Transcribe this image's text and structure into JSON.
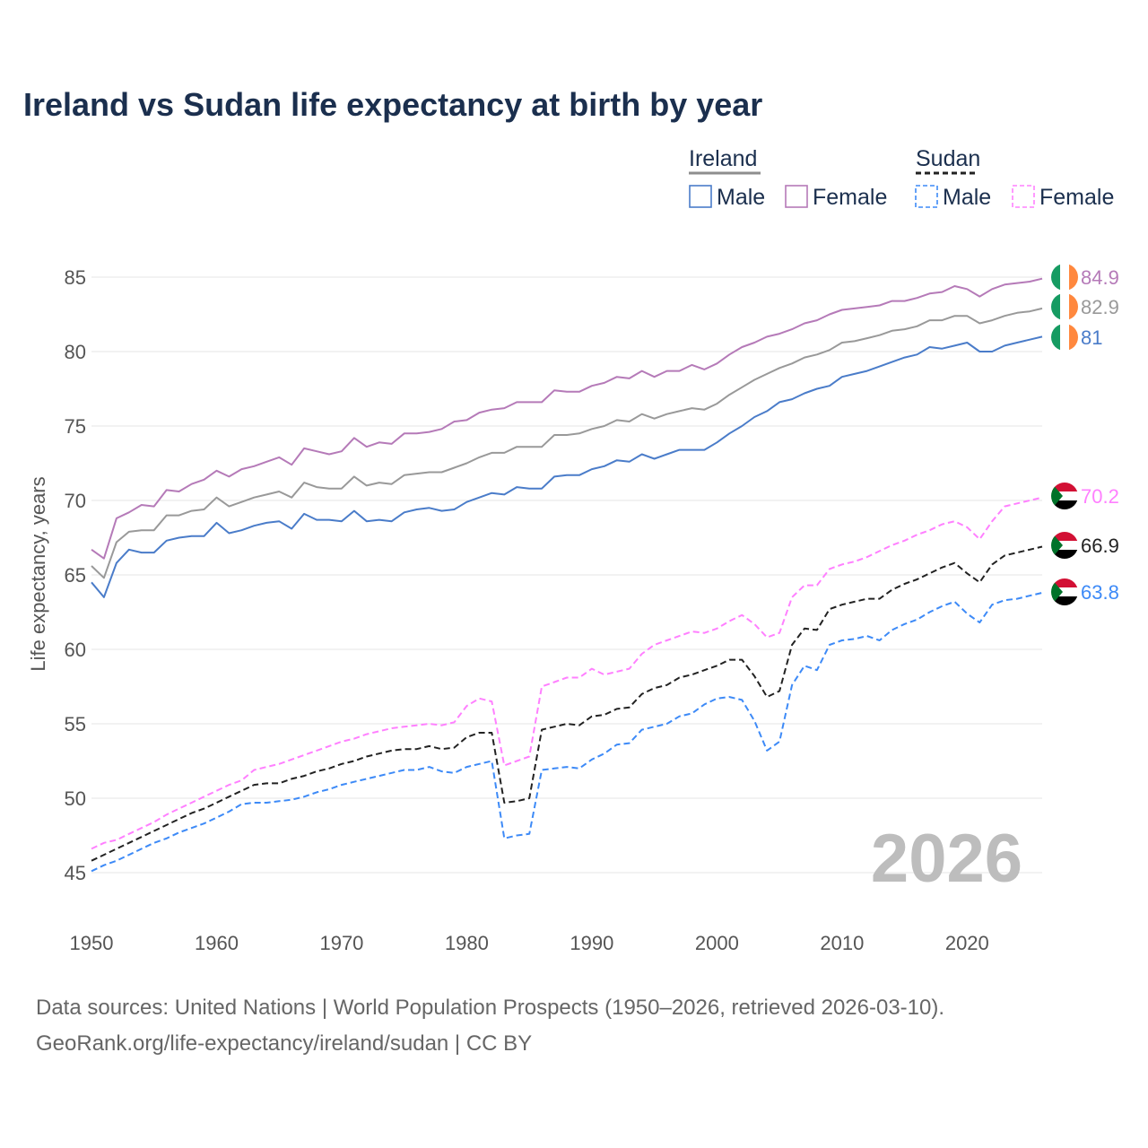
{
  "chart_data": {
    "type": "line",
    "title": "Ireland vs Sudan life expectancy at birth by year",
    "xlabel": "",
    "ylabel": "Life expectancy, years",
    "xlim": [
      1950,
      2026
    ],
    "ylim": [
      45,
      85
    ],
    "x_ticks": [
      "1950",
      "1960",
      "1970",
      "1980",
      "1990",
      "2000",
      "2010",
      "2020"
    ],
    "y_ticks": [
      "45",
      "50",
      "55",
      "60",
      "65",
      "70",
      "75",
      "80",
      "85"
    ],
    "grid": true,
    "year_watermark": "2026",
    "legend": {
      "placement": "top-right",
      "groups": [
        {
          "name": "Ireland",
          "color": "#8e8e8e",
          "style": "solid",
          "entries": [
            {
              "label": "Male",
              "color": "#4a7cc9"
            },
            {
              "label": "Female",
              "color": "#b57ab8"
            }
          ]
        },
        {
          "name": "Sudan",
          "color": "#222222",
          "style": "dashed",
          "entries": [
            {
              "label": "Male",
              "color": "#3d8af7"
            },
            {
              "label": "Female",
              "color": "#ff80ff"
            }
          ]
        }
      ]
    },
    "x_start": 1950,
    "series": [
      {
        "name": "Ireland Female",
        "country": "Ireland",
        "color": "#b57ab8",
        "dashed": false,
        "end_label": "84.9",
        "values": [
          66.7,
          66.1,
          68.8,
          69.2,
          69.7,
          69.6,
          70.7,
          70.6,
          71.1,
          71.4,
          72.0,
          71.6,
          72.1,
          72.3,
          72.6,
          72.9,
          72.4,
          73.5,
          73.3,
          73.1,
          73.3,
          74.2,
          73.6,
          73.9,
          73.8,
          74.5,
          74.5,
          74.6,
          74.8,
          75.3,
          75.4,
          75.9,
          76.1,
          76.2,
          76.6,
          76.6,
          76.6,
          77.4,
          77.3,
          77.3,
          77.7,
          77.9,
          78.3,
          78.2,
          78.7,
          78.3,
          78.7,
          78.7,
          79.1,
          78.8,
          79.2,
          79.8,
          80.3,
          80.6,
          81.0,
          81.2,
          81.5,
          81.9,
          82.1,
          82.5,
          82.8,
          82.9,
          83.0,
          83.1,
          83.4,
          83.4,
          83.6,
          83.9,
          84.0,
          84.4,
          84.2,
          83.7,
          84.2,
          84.5,
          84.6,
          84.7,
          84.9
        ]
      },
      {
        "name": "Ireland Total",
        "country": "Ireland",
        "color": "#999999",
        "dashed": false,
        "end_label": "82.9",
        "values": [
          65.6,
          64.8,
          67.2,
          67.9,
          68.0,
          68.0,
          69.0,
          69.0,
          69.3,
          69.4,
          70.2,
          69.6,
          69.9,
          70.2,
          70.4,
          70.6,
          70.2,
          71.2,
          70.9,
          70.8,
          70.8,
          71.6,
          71.0,
          71.2,
          71.1,
          71.7,
          71.8,
          71.9,
          71.9,
          72.2,
          72.5,
          72.9,
          73.2,
          73.2,
          73.6,
          73.6,
          73.6,
          74.4,
          74.4,
          74.5,
          74.8,
          75.0,
          75.4,
          75.3,
          75.8,
          75.5,
          75.8,
          76.0,
          76.2,
          76.1,
          76.5,
          77.1,
          77.6,
          78.1,
          78.5,
          78.9,
          79.2,
          79.6,
          79.8,
          80.1,
          80.6,
          80.7,
          80.9,
          81.1,
          81.4,
          81.5,
          81.7,
          82.1,
          82.1,
          82.4,
          82.4,
          81.9,
          82.1,
          82.4,
          82.6,
          82.7,
          82.9
        ]
      },
      {
        "name": "Ireland Male",
        "country": "Ireland",
        "color": "#4a7cc9",
        "dashed": false,
        "end_label": "81",
        "values": [
          64.5,
          63.5,
          65.8,
          66.7,
          66.5,
          66.5,
          67.3,
          67.5,
          67.6,
          67.6,
          68.5,
          67.8,
          68.0,
          68.3,
          68.5,
          68.6,
          68.1,
          69.1,
          68.7,
          68.7,
          68.6,
          69.3,
          68.6,
          68.7,
          68.6,
          69.2,
          69.4,
          69.5,
          69.3,
          69.4,
          69.9,
          70.2,
          70.5,
          70.4,
          70.9,
          70.8,
          70.8,
          71.6,
          71.7,
          71.7,
          72.1,
          72.3,
          72.7,
          72.6,
          73.1,
          72.8,
          73.1,
          73.4,
          73.4,
          73.4,
          73.9,
          74.5,
          75.0,
          75.6,
          76.0,
          76.6,
          76.8,
          77.2,
          77.5,
          77.7,
          78.3,
          78.5,
          78.7,
          79.0,
          79.3,
          79.6,
          79.8,
          80.3,
          80.2,
          80.4,
          80.6,
          80.0,
          80.0,
          80.4,
          80.6,
          80.8,
          81.0
        ]
      },
      {
        "name": "Sudan Female",
        "country": "Sudan",
        "color": "#ff80ff",
        "dashed": true,
        "end_label": "70.2",
        "values": [
          46.6,
          47.0,
          47.2,
          47.6,
          48.0,
          48.4,
          48.9,
          49.3,
          49.7,
          50.1,
          50.5,
          50.9,
          51.2,
          51.9,
          52.1,
          52.3,
          52.6,
          52.9,
          53.2,
          53.5,
          53.8,
          54.0,
          54.3,
          54.5,
          54.7,
          54.8,
          54.9,
          55.0,
          54.9,
          55.1,
          56.2,
          56.7,
          56.5,
          52.2,
          52.5,
          52.8,
          57.5,
          57.8,
          58.1,
          58.1,
          58.7,
          58.3,
          58.5,
          58.7,
          59.7,
          60.3,
          60.6,
          60.9,
          61.2,
          61.1,
          61.4,
          61.9,
          62.3,
          61.7,
          60.8,
          61.1,
          63.5,
          64.3,
          64.3,
          65.4,
          65.7,
          65.9,
          66.2,
          66.6,
          67.0,
          67.3,
          67.7,
          68.0,
          68.4,
          68.6,
          68.2,
          67.4,
          68.6,
          69.6,
          69.8,
          70.0,
          70.2
        ]
      },
      {
        "name": "Sudan Total",
        "country": "Sudan",
        "color": "#222222",
        "dashed": true,
        "end_label": "66.9",
        "values": [
          45.8,
          46.2,
          46.6,
          47.0,
          47.4,
          47.8,
          48.2,
          48.6,
          49.0,
          49.3,
          49.7,
          50.1,
          50.5,
          50.9,
          51.0,
          51.0,
          51.3,
          51.5,
          51.8,
          52.0,
          52.3,
          52.5,
          52.8,
          53.0,
          53.2,
          53.3,
          53.3,
          53.5,
          53.3,
          53.4,
          54.1,
          54.4,
          54.4,
          49.7,
          49.8,
          50.0,
          54.6,
          54.8,
          55.0,
          54.9,
          55.5,
          55.6,
          56.0,
          56.1,
          57.0,
          57.4,
          57.6,
          58.1,
          58.3,
          58.6,
          58.9,
          59.3,
          59.3,
          58.2,
          56.8,
          57.2,
          60.3,
          61.4,
          61.3,
          62.7,
          63.0,
          63.2,
          63.4,
          63.4,
          64.0,
          64.4,
          64.7,
          65.1,
          65.5,
          65.8,
          65.1,
          64.5,
          65.7,
          66.3,
          66.5,
          66.7,
          66.9
        ]
      },
      {
        "name": "Sudan Male",
        "country": "Sudan",
        "color": "#3d8af7",
        "dashed": true,
        "end_label": "63.8",
        "values": [
          45.1,
          45.5,
          45.8,
          46.2,
          46.6,
          47.0,
          47.3,
          47.7,
          48.0,
          48.3,
          48.7,
          49.1,
          49.6,
          49.7,
          49.7,
          49.8,
          49.9,
          50.1,
          50.4,
          50.6,
          50.9,
          51.1,
          51.3,
          51.5,
          51.7,
          51.9,
          51.9,
          52.1,
          51.8,
          51.7,
          52.1,
          52.3,
          52.5,
          47.3,
          47.5,
          47.6,
          51.9,
          52.0,
          52.1,
          52.0,
          52.6,
          53.0,
          53.6,
          53.7,
          54.6,
          54.8,
          55.0,
          55.5,
          55.7,
          56.3,
          56.7,
          56.8,
          56.6,
          55.2,
          53.2,
          53.8,
          57.6,
          58.9,
          58.6,
          60.3,
          60.6,
          60.7,
          60.9,
          60.6,
          61.3,
          61.7,
          62.0,
          62.5,
          62.9,
          63.2,
          62.4,
          61.8,
          63.0,
          63.3,
          63.4,
          63.6,
          63.8
        ]
      }
    ]
  },
  "footer": {
    "line1": "Data sources: United Nations | World Population Prospects (1950–2026, retrieved 2026-03-10).",
    "line2": "GeoRank.org/life-expectancy/ireland/sudan | CC BY"
  }
}
